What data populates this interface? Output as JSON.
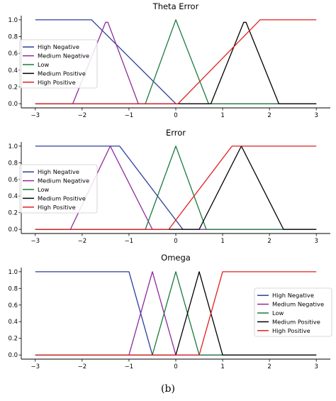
{
  "caption": "(b)",
  "legend_entries": [
    "High Negative",
    "Medium Negative",
    "Low",
    "Medium Positive",
    "High Positive"
  ],
  "colors": [
    "#2b3f9b",
    "#8e2a9c",
    "#1a7a3c",
    "#000000",
    "#e01f1f"
  ],
  "chart_data": [
    {
      "type": "line",
      "title": "Theta Error",
      "xlim": [
        -3,
        3
      ],
      "ylim": [
        0,
        1.0
      ],
      "xticks": [
        -3,
        -2,
        -1,
        0,
        1,
        2,
        3
      ],
      "xtick_labels": [
        "−3",
        "−2",
        "−1",
        "0",
        "1",
        "2",
        "3"
      ],
      "yticks": [
        0.0,
        0.2,
        0.4,
        0.6,
        0.8,
        1.0
      ],
      "ytick_labels": [
        "0.0",
        "0.2",
        "0.4",
        "0.6",
        "0.8",
        "1.0"
      ],
      "legend_position": "center-left",
      "series": [
        {
          "name": "High Negative",
          "points": [
            [
              -3,
              1
            ],
            [
              -1.8,
              1
            ],
            [
              0,
              0
            ],
            [
              3,
              0
            ]
          ]
        },
        {
          "name": "Medium Negative",
          "points": [
            [
              -3,
              0
            ],
            [
              -2.2,
              0
            ],
            [
              -1.5,
              0.97
            ],
            [
              -1.45,
              0.97
            ],
            [
              -0.8,
              0
            ],
            [
              3,
              0
            ]
          ]
        },
        {
          "name": "Low",
          "points": [
            [
              -3,
              0
            ],
            [
              -0.65,
              0
            ],
            [
              0,
              1
            ],
            [
              0.7,
              0
            ],
            [
              3,
              0
            ]
          ]
        },
        {
          "name": "Medium Positive",
          "points": [
            [
              -3,
              0
            ],
            [
              0.75,
              0
            ],
            [
              1.45,
              0.97
            ],
            [
              1.5,
              0.97
            ],
            [
              2.2,
              0
            ],
            [
              3,
              0
            ]
          ]
        },
        {
          "name": "High Positive",
          "points": [
            [
              -3,
              0
            ],
            [
              0.05,
              0
            ],
            [
              1.8,
              1
            ],
            [
              3,
              1
            ]
          ]
        }
      ]
    },
    {
      "type": "line",
      "title": "Error",
      "xlim": [
        -3,
        3
      ],
      "ylim": [
        0,
        1.0
      ],
      "xticks": [
        -3,
        -2,
        -1,
        0,
        1,
        2,
        3
      ],
      "xtick_labels": [
        "−3",
        "−2",
        "−1",
        "0",
        "1",
        "2",
        "3"
      ],
      "yticks": [
        0.0,
        0.2,
        0.4,
        0.6,
        0.8,
        1.0
      ],
      "ytick_labels": [
        "0.0",
        "0.2",
        "0.4",
        "0.6",
        "0.8",
        "1.0"
      ],
      "legend_position": "center-left",
      "series": [
        {
          "name": "High Negative",
          "points": [
            [
              -3,
              1
            ],
            [
              -1.2,
              1
            ],
            [
              0.15,
              0
            ],
            [
              3,
              0
            ]
          ]
        },
        {
          "name": "Medium Negative",
          "points": [
            [
              -3,
              0
            ],
            [
              -2.25,
              0
            ],
            [
              -1.4,
              1
            ],
            [
              -0.5,
              0
            ],
            [
              3,
              0
            ]
          ]
        },
        {
          "name": "Low",
          "points": [
            [
              -3,
              0
            ],
            [
              -0.65,
              0
            ],
            [
              0,
              1
            ],
            [
              0.65,
              0
            ],
            [
              3,
              0
            ]
          ]
        },
        {
          "name": "Medium Positive",
          "points": [
            [
              -3,
              0
            ],
            [
              0.5,
              0
            ],
            [
              1.4,
              1
            ],
            [
              2.3,
              0
            ],
            [
              3,
              0
            ]
          ]
        },
        {
          "name": "High Positive",
          "points": [
            [
              -3,
              0
            ],
            [
              -0.15,
              0
            ],
            [
              1.2,
              1
            ],
            [
              3,
              1
            ]
          ]
        }
      ]
    },
    {
      "type": "line",
      "title": "Omega",
      "xlim": [
        -3,
        3
      ],
      "ylim": [
        0,
        1.0
      ],
      "xticks": [
        -3,
        -2,
        -1,
        0,
        1,
        2,
        3
      ],
      "xtick_labels": [
        "−3",
        "−2",
        "−1",
        "0",
        "1",
        "2",
        "3"
      ],
      "yticks": [
        0.0,
        0.2,
        0.4,
        0.6,
        0.8,
        1.0
      ],
      "ytick_labels": [
        "0.0",
        "0.2",
        "0.4",
        "0.6",
        "0.8",
        "1.0"
      ],
      "legend_position": "center-right",
      "series": [
        {
          "name": "High Negative",
          "points": [
            [
              -3,
              1
            ],
            [
              -1,
              1
            ],
            [
              -0.5,
              0
            ],
            [
              3,
              0
            ]
          ]
        },
        {
          "name": "Medium Negative",
          "points": [
            [
              -3,
              0
            ],
            [
              -1,
              0
            ],
            [
              -0.5,
              1
            ],
            [
              0,
              0
            ],
            [
              3,
              0
            ]
          ]
        },
        {
          "name": "Low",
          "points": [
            [
              -3,
              0
            ],
            [
              -0.5,
              0
            ],
            [
              0,
              1
            ],
            [
              0.5,
              0
            ],
            [
              3,
              0
            ]
          ]
        },
        {
          "name": "Medium Positive",
          "points": [
            [
              -3,
              0
            ],
            [
              0,
              0
            ],
            [
              0.5,
              1
            ],
            [
              1,
              0
            ],
            [
              3,
              0
            ]
          ]
        },
        {
          "name": "High Positive",
          "points": [
            [
              -3,
              0
            ],
            [
              0.5,
              0
            ],
            [
              1,
              1
            ],
            [
              3,
              1
            ]
          ]
        }
      ]
    }
  ]
}
